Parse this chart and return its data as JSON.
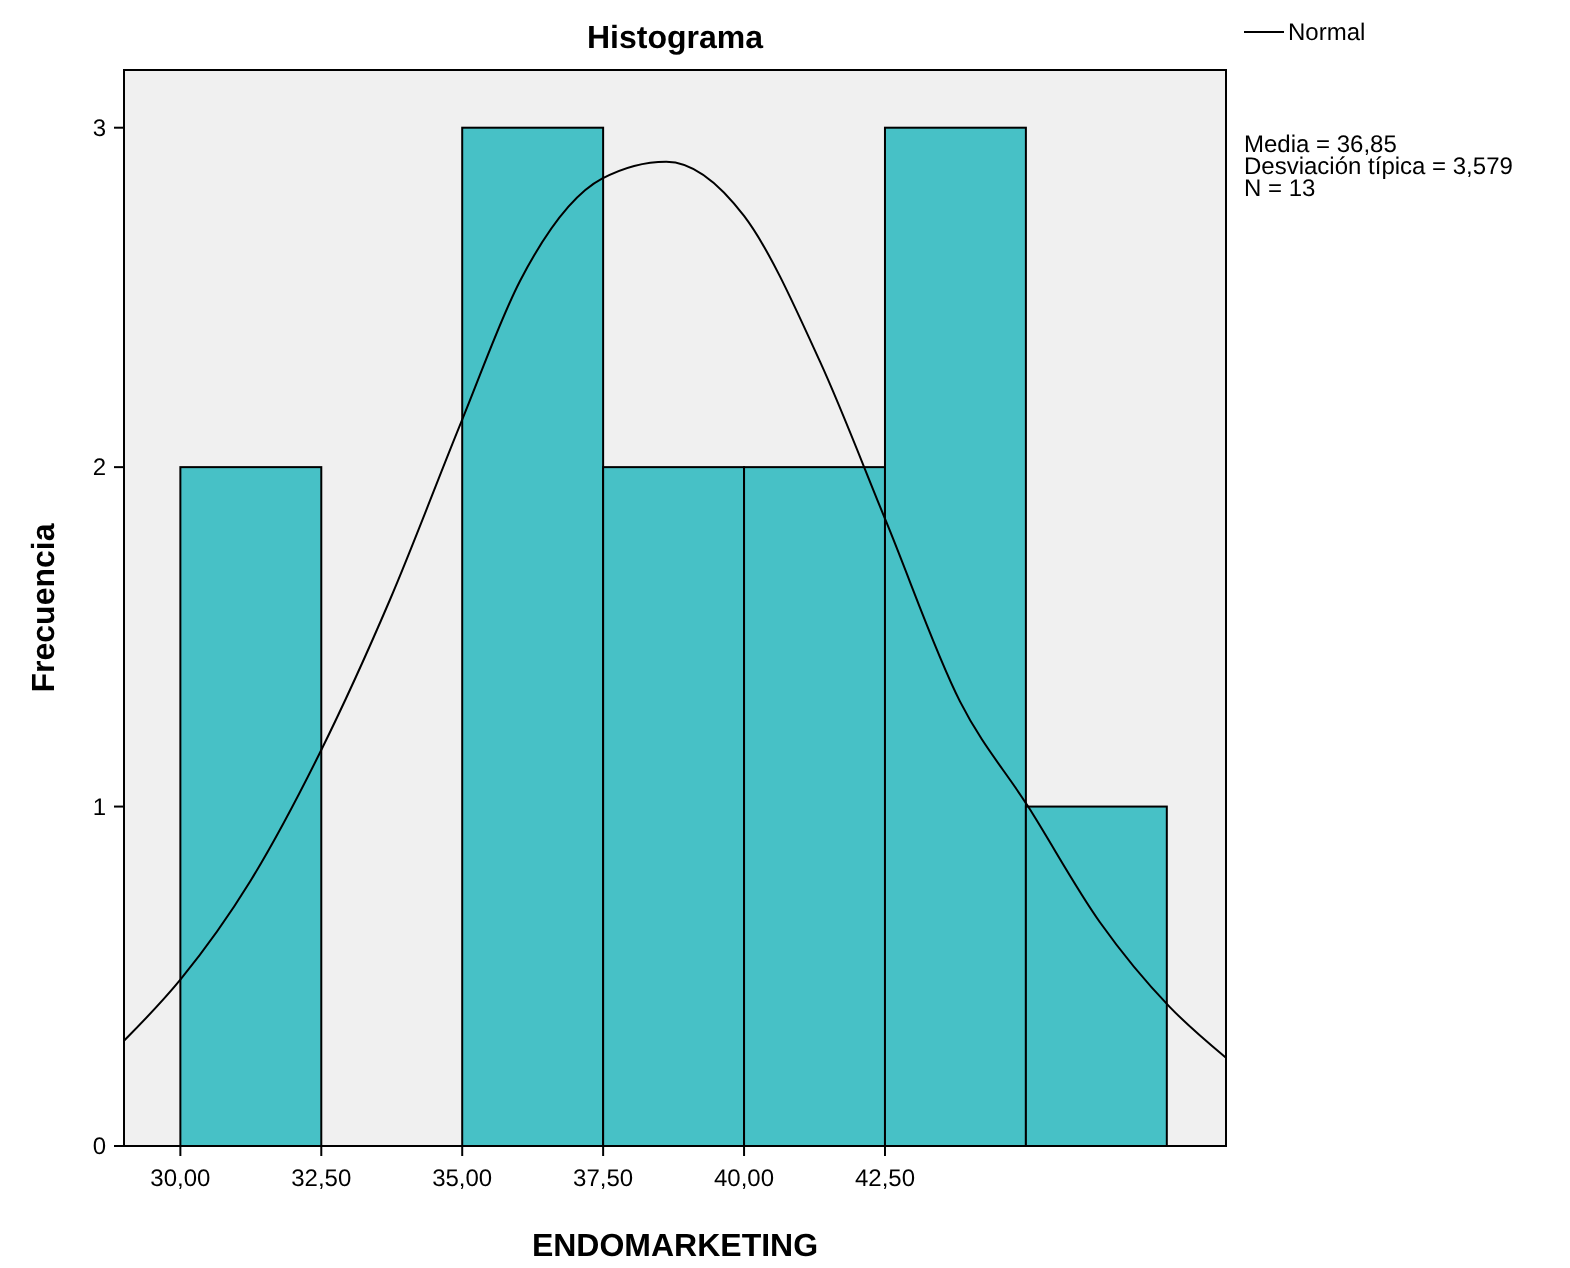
{
  "chart_data": {
    "type": "histogram",
    "title": "Histograma",
    "xlabel": "ENDOMARKETING",
    "ylabel": "Frecuencia",
    "series": [
      {
        "color": "#47c1c6",
        "bins": [
          30,
          32.5,
          35,
          37.5,
          40,
          42.5,
          45,
          47.5
        ],
        "values": [
          2,
          0,
          3,
          2,
          2,
          3,
          1
        ]
      },
      {
        "type": "line",
        "name": "Normal",
        "color": "#000000",
        "x": [
          29.0,
          30,
          31.24,
          32.48,
          33.72,
          35.0,
          36.03,
          37.48,
          38.62,
          40.0,
          41.35,
          42.52,
          43.83,
          45.04,
          46.31,
          47.55,
          48.55
        ],
        "values": [
          0.31,
          0.49,
          0.78,
          1.16,
          1.61,
          2.14,
          2.55,
          2.85,
          2.9,
          2.74,
          2.31,
          1.84,
          1.31,
          1.0,
          0.66,
          0.41,
          0.26
        ]
      }
    ],
    "xlim": [
      29,
      48.55
    ],
    "xticks": [
      {
        "value": 30,
        "label": "30,00"
      },
      {
        "value": 32.5,
        "label": "32,50"
      },
      {
        "value": 35,
        "label": "35,00"
      },
      {
        "value": 37.5,
        "label": "37,50"
      },
      {
        "value": 40,
        "label": "40,00"
      },
      {
        "value": 42.5,
        "label": "42,50"
      }
    ],
    "ylim": [
      0,
      3.17
    ],
    "yticks": [
      0,
      1,
      2,
      3
    ],
    "legend": "top right",
    "annotations": [
      "Media = 36,85",
      "Desviación típica = 3,579",
      "N = 13"
    ]
  }
}
